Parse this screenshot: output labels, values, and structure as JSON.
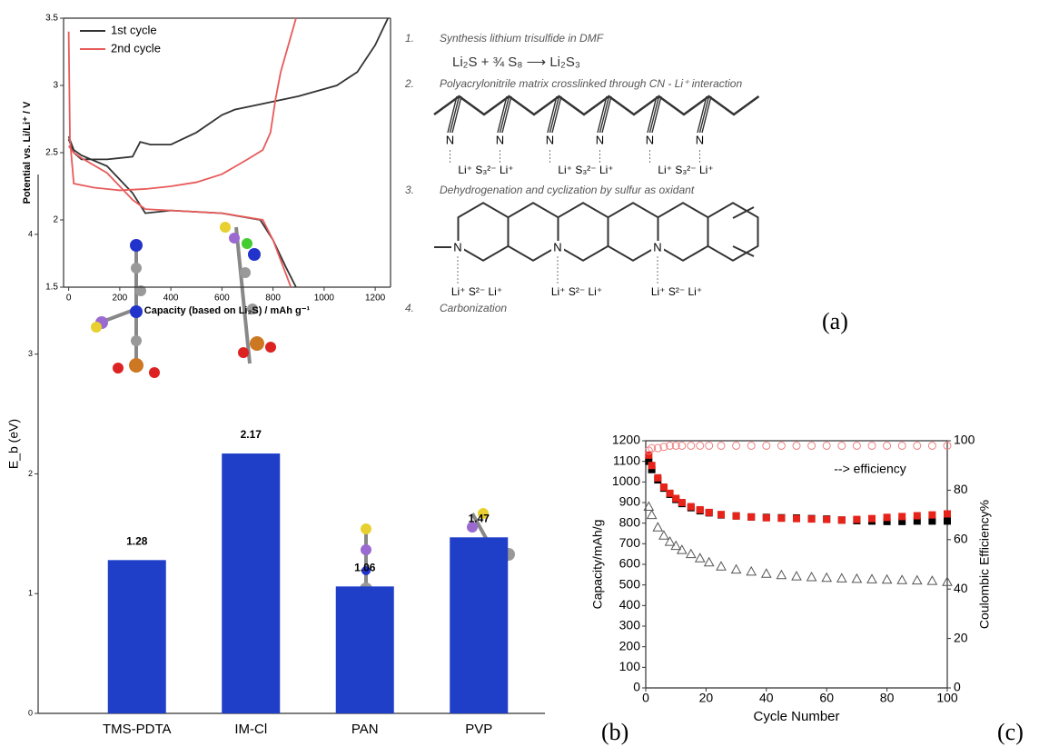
{
  "chart_data": [
    {
      "type": "line",
      "xlabel": "Capacity (based on Li₂S) / mAh g⁻¹",
      "ylabel": "Potential vs. Li/Li⁺ / V",
      "xlim": [
        -20,
        1260
      ],
      "xticks": [
        0,
        200,
        400,
        600,
        800,
        1000,
        1200
      ],
      "ylim": [
        1.5,
        3.5
      ],
      "yticks": [
        1.5,
        2,
        2.5,
        3,
        3.5
      ],
      "legend": "upper left",
      "series": [
        {
          "name": "1st cycle",
          "color": "#333333",
          "x": [
            0,
            20,
            50,
            150,
            250,
            280,
            320,
            400,
            500,
            600,
            650,
            750,
            900,
            1050,
            1130,
            1200,
            1250,
            null,
            0,
            20,
            50,
            150,
            250,
            300,
            400,
            600,
            750,
            800,
            850,
            890
          ],
          "values": [
            2.6,
            2.5,
            2.45,
            2.45,
            2.47,
            2.58,
            2.56,
            2.56,
            2.65,
            2.78,
            2.82,
            2.86,
            2.92,
            3.0,
            3.1,
            3.3,
            3.5,
            null,
            2.62,
            2.52,
            2.48,
            2.4,
            2.2,
            2.05,
            2.07,
            2.05,
            2.0,
            1.85,
            1.65,
            1.5
          ]
        },
        {
          "name": "2nd cycle",
          "color": "#e85a5a",
          "x": [
            0,
            5,
            20,
            100,
            200,
            300,
            400,
            500,
            600,
            700,
            760,
            790,
            810,
            830,
            860,
            890,
            null,
            0,
            20,
            50,
            150,
            250,
            300,
            400,
            600,
            760,
            800,
            840,
            870
          ],
          "values": [
            3.4,
            2.6,
            2.27,
            2.24,
            2.22,
            2.23,
            2.25,
            2.28,
            2.34,
            2.45,
            2.52,
            2.65,
            2.9,
            3.1,
            3.3,
            3.5,
            null,
            2.55,
            2.5,
            2.46,
            2.35,
            2.15,
            2.08,
            2.07,
            2.05,
            2.0,
            1.85,
            1.65,
            1.5
          ]
        }
      ]
    },
    {
      "type": "bar",
      "ylabel": "E_b (eV)",
      "categories": [
        "TMS-PDTA",
        "IM-Cl",
        "PAN",
        "PVP"
      ],
      "values": [
        1.28,
        2.17,
        1.06,
        1.47
      ],
      "color": "#1f3fc8",
      "ylim": [
        0,
        4.5
      ],
      "yticks": [
        0,
        1,
        2,
        3,
        4
      ]
    },
    {
      "type": "scatter",
      "xlabel": "Cycle Number",
      "ylabel": "Capacity/mAh/g",
      "y2label": "Coulombic Efficiency%",
      "annotation": "--> efficiency",
      "xlim": [
        0,
        100
      ],
      "xticks": [
        0,
        20,
        40,
        60,
        80,
        100
      ],
      "ylim": [
        0,
        1200
      ],
      "yticks": [
        0,
        100,
        200,
        300,
        400,
        500,
        600,
        700,
        800,
        900,
        1000,
        1100,
        1200
      ],
      "y2lim": [
        0,
        100
      ],
      "y2ticks": [
        0,
        20,
        40,
        60,
        80,
        100
      ],
      "x": [
        1,
        2,
        4,
        6,
        8,
        10,
        12,
        15,
        18,
        21,
        25,
        30,
        35,
        40,
        45,
        50,
        55,
        60,
        65,
        70,
        75,
        80,
        85,
        90,
        95,
        100
      ],
      "series": [
        {
          "color": "#000000",
          "marker": "square",
          "filled": true,
          "values": [
            1100,
            1060,
            1010,
            970,
            940,
            915,
            895,
            875,
            860,
            850,
            840,
            835,
            830,
            828,
            826,
            825,
            822,
            820,
            815,
            812,
            810,
            808,
            808,
            810,
            810,
            810
          ]
        },
        {
          "color": "#e8231a",
          "marker": "square",
          "filled": true,
          "values": [
            1130,
            1080,
            1020,
            975,
            945,
            920,
            900,
            880,
            865,
            852,
            842,
            835,
            830,
            826,
            824,
            822,
            820,
            818,
            815,
            818,
            822,
            828,
            832,
            836,
            840,
            845
          ]
        },
        {
          "color": "#555555",
          "marker": "triangle",
          "filled": false,
          "values": [
            880,
            840,
            780,
            740,
            710,
            690,
            670,
            650,
            630,
            610,
            590,
            575,
            565,
            555,
            548,
            542,
            538,
            535,
            532,
            530,
            528,
            526,
            524,
            522,
            520,
            515
          ]
        },
        {
          "color": "#f08080",
          "marker": "circle",
          "filled": false,
          "axis": "y2",
          "values": [
            96,
            97,
            97,
            97.5,
            98,
            98,
            98,
            98,
            98,
            98,
            98,
            98,
            98,
            98,
            98,
            98,
            98,
            98,
            98,
            98,
            98,
            98,
            98,
            98,
            98,
            98
          ]
        }
      ]
    }
  ],
  "scheme": {
    "steps": [
      {
        "number": "1.",
        "text": "Synthesis lithium trisulfide in DMF"
      },
      {
        "number": "2.",
        "text": "Polyacrylonitrile matrix crosslinked through CN - Li⁺ interaction"
      },
      {
        "number": "3.",
        "text": "Dehydrogenation and cyclization by sulfur as oxidant"
      },
      {
        "number": "4.",
        "text": "Carbonization"
      }
    ],
    "equation": "Li₂S + ¾ S₈ ⟶ Li₂S₃",
    "atom": "N",
    "ions_top": "Li⁺ S₃²⁻ Li⁺",
    "ions_bottom": "Li⁺ S²⁻ Li⁺"
  },
  "panel_labels": [
    "(a)",
    "(b)",
    "(c)"
  ]
}
